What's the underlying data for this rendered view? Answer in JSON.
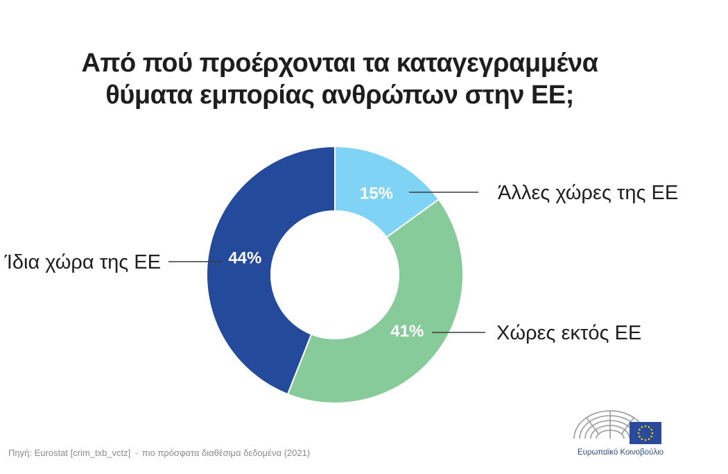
{
  "title_lines": [
    "Από πού προέρχονται τα καταγεγραμμένα",
    "θύματα εμπορίας ανθρώπων στην ΕΕ;"
  ],
  "chart_data": {
    "type": "pie",
    "title": "Από πού προέρχονται τα καταγεγραμμένα θύματα εμπορίας ανθρώπων στην ΕΕ;",
    "slices": [
      {
        "label": "Άλλες χώρες της ΕΕ",
        "value": 15,
        "value_label": "15%",
        "color": "#7fd3f4"
      },
      {
        "label": "Χώρες εκτός ΕΕ",
        "value": 41,
        "value_label": "41%",
        "color": "#88cb9b"
      },
      {
        "label": "Ίδια χώρα της ΕΕ",
        "value": 44,
        "value_label": "44%",
        "color": "#244a9c"
      }
    ]
  },
  "source": {
    "text": "Πηγή: Eurostat [crim_txb_vctz]",
    "separator": "·",
    "note": "πιο πρόσφατα διαθέσιμα δεδομένα (2021)"
  },
  "logo": {
    "text": "Ευρωπαϊκό Κοινοβούλιο",
    "icon": "european-parliament-hemicycle-icon",
    "flag_icon": "eu-flag-icon",
    "flag_color": "#2a4b9b",
    "star_color": "#f5d200"
  }
}
